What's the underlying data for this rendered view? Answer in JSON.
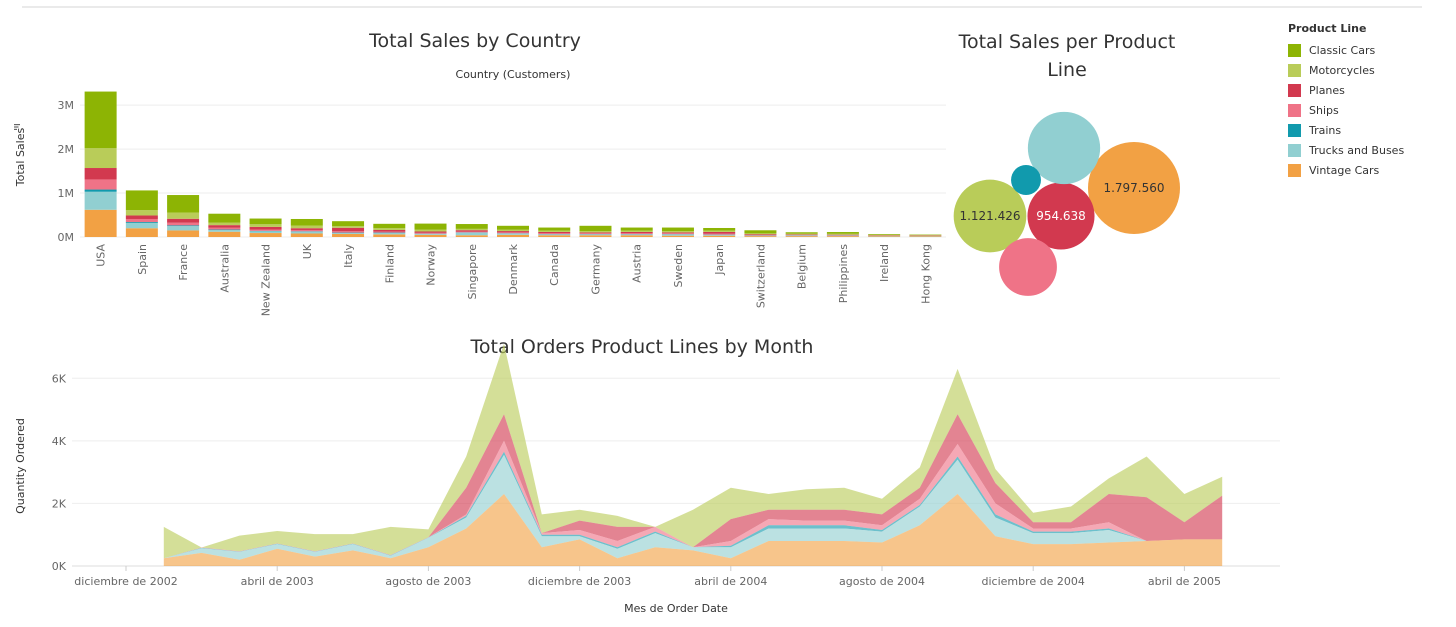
{
  "legend": {
    "title": "Product Line",
    "items": [
      {
        "label": "Classic Cars",
        "color": "#8db404"
      },
      {
        "label": "Motorcycles",
        "color": "#b9cc59"
      },
      {
        "label": "Planes",
        "color": "#d2394f"
      },
      {
        "label": "Ships",
        "color": "#ef7387"
      },
      {
        "label": "Trains",
        "color": "#119aad"
      },
      {
        "label": "Trucks and Buses",
        "color": "#91cfd1"
      },
      {
        "label": "Vintage Cars",
        "color": "#f2a144"
      }
    ]
  },
  "chart_data": [
    {
      "type": "bar",
      "stacked": true,
      "title": "Total Sales by Country",
      "subtitle": "Country (Customers)",
      "ylabel": "Total Sales",
      "ylim": [
        0,
        3300000
      ],
      "yticks": [
        0,
        1000000,
        2000000,
        3000000
      ],
      "ytick_labels": [
        "0M",
        "1M",
        "2M",
        "3M"
      ],
      "grid": true,
      "categories": [
        "USA",
        "Spain",
        "France",
        "Australia",
        "New Zealand",
        "UK",
        "Italy",
        "Finland",
        "Norway",
        "Singapore",
        "Denmark",
        "Canada",
        "Germany",
        "Austria",
        "Sweden",
        "Japan",
        "Switzerland",
        "Belgium",
        "Philippines",
        "Ireland",
        "Hong Kong"
      ],
      "series": [
        {
          "name": "Vintage Cars",
          "values": [
            620000,
            200000,
            150000,
            120000,
            90000,
            80000,
            70000,
            60000,
            50000,
            40000,
            50000,
            40000,
            40000,
            40000,
            30000,
            30000,
            20000,
            20000,
            20000,
            15000,
            15000
          ]
        },
        {
          "name": "Trucks and Buses",
          "values": [
            410000,
            120000,
            100000,
            40000,
            40000,
            40000,
            20000,
            30000,
            20000,
            60000,
            30000,
            20000,
            20000,
            20000,
            30000,
            20000,
            10000,
            15000,
            10000,
            5000,
            5000
          ]
        },
        {
          "name": "Trains",
          "values": [
            50000,
            20000,
            15000,
            10000,
            10000,
            10000,
            10000,
            10000,
            5000,
            5000,
            5000,
            5000,
            5000,
            5000,
            5000,
            5000,
            3000,
            3000,
            3000,
            2000,
            2000
          ]
        },
        {
          "name": "Ships",
          "values": [
            230000,
            70000,
            60000,
            40000,
            30000,
            30000,
            30000,
            20000,
            20000,
            20000,
            20000,
            20000,
            20000,
            20000,
            20000,
            20000,
            10000,
            10000,
            10000,
            5000,
            5000
          ]
        },
        {
          "name": "Planes",
          "values": [
            260000,
            80000,
            90000,
            60000,
            60000,
            40000,
            80000,
            40000,
            30000,
            30000,
            30000,
            30000,
            20000,
            30000,
            20000,
            40000,
            20000,
            10000,
            10000,
            10000,
            8000
          ]
        },
        {
          "name": "Motorcycles",
          "values": [
            450000,
            120000,
            140000,
            60000,
            60000,
            60000,
            40000,
            40000,
            40000,
            30000,
            30000,
            30000,
            30000,
            30000,
            30000,
            30000,
            20000,
            20000,
            20000,
            10000,
            10000
          ]
        },
        {
          "name": "Classic Cars",
          "values": [
            1290000,
            450000,
            400000,
            200000,
            130000,
            150000,
            110000,
            100000,
            140000,
            110000,
            90000,
            70000,
            120000,
            70000,
            80000,
            60000,
            70000,
            30000,
            40000,
            18000,
            10000
          ]
        }
      ]
    },
    {
      "type": "bubble",
      "title": "Total Sales per Product Line",
      "series": [
        {
          "name": "Vintage Cars",
          "value": 1797560,
          "label": "1.797.560"
        },
        {
          "name": "Motorcycles",
          "value": 1121426,
          "label": "1.121.426"
        },
        {
          "name": "Planes",
          "value": 954638,
          "label": "954.638"
        },
        {
          "name": "Trucks and Buses",
          "value": 1110000
        },
        {
          "name": "Ships",
          "value": 710000
        },
        {
          "name": "Trains",
          "value": 190000
        }
      ]
    },
    {
      "type": "area",
      "stacked": true,
      "title": "Total Orders Product Lines by Month",
      "xlabel": "Mes de Order Date",
      "ylabel": "Quantity Ordered",
      "ylim": [
        0,
        6200
      ],
      "yticks": [
        0,
        2000,
        4000,
        6000
      ],
      "ytick_labels": [
        "0K",
        "2K",
        "4K",
        "6K"
      ],
      "grid": true,
      "xtick_labels": [
        {
          "label": "diciembre de 2002",
          "month": "2002-12"
        },
        {
          "label": "abril de 2003",
          "month": "2003-04"
        },
        {
          "label": "agosto de 2003",
          "month": "2003-08"
        },
        {
          "label": "diciembre de 2003",
          "month": "2003-12"
        },
        {
          "label": "abril de 2004",
          "month": "2004-04"
        },
        {
          "label": "agosto de 2004",
          "month": "2004-08"
        },
        {
          "label": "diciembre de 2004",
          "month": "2004-12"
        },
        {
          "label": "abril de 2005",
          "month": "2005-04"
        }
      ],
      "x": [
        "2003-01",
        "2003-02",
        "2003-03",
        "2003-04",
        "2003-05",
        "2003-06",
        "2003-07",
        "2003-08",
        "2003-09",
        "2003-10",
        "2003-11",
        "2003-12",
        "2004-01",
        "2004-02",
        "2004-03",
        "2004-04",
        "2004-05",
        "2004-06",
        "2004-07",
        "2004-08",
        "2004-09",
        "2004-10",
        "2004-11",
        "2004-12",
        "2005-01",
        "2005-02",
        "2005-03",
        "2005-04",
        "2005-05"
      ],
      "series": [
        {
          "name": "Vintage Cars",
          "values": [
            250,
            420,
            200,
            550,
            300,
            500,
            250,
            600,
            1200,
            2300,
            600,
            850,
            250,
            600,
            500,
            250,
            800,
            800,
            800,
            750,
            1300,
            2300,
            950,
            700,
            700,
            750,
            800,
            850,
            850
          ]
        },
        {
          "name": "Trucks and Buses",
          "values": [
            0,
            150,
            250,
            150,
            150,
            200,
            80,
            300,
            350,
            1250,
            350,
            100,
            300,
            450,
            100,
            350,
            400,
            400,
            400,
            350,
            600,
            1100,
            600,
            350,
            350,
            400,
            0,
            0,
            0
          ]
        },
        {
          "name": "Trains",
          "values": [
            0,
            10,
            10,
            10,
            10,
            10,
            10,
            10,
            50,
            100,
            50,
            50,
            50,
            50,
            0,
            50,
            100,
            100,
            100,
            50,
            50,
            100,
            100,
            50,
            50,
            50,
            0,
            0,
            0
          ]
        },
        {
          "name": "Ships",
          "values": [
            0,
            10,
            10,
            10,
            10,
            10,
            10,
            10,
            50,
            350,
            50,
            150,
            200,
            150,
            0,
            150,
            200,
            150,
            150,
            150,
            200,
            400,
            350,
            100,
            100,
            200,
            0,
            0,
            0
          ]
        },
        {
          "name": "Planes",
          "values": [
            0,
            0,
            0,
            0,
            0,
            0,
            0,
            0,
            850,
            850,
            0,
            300,
            450,
            0,
            0,
            700,
            300,
            350,
            350,
            350,
            350,
            950,
            650,
            200,
            200,
            900,
            1400,
            550,
            1400
          ]
        },
        {
          "name": "Motorcycles",
          "values": [
            1000,
            0,
            500,
            400,
            550,
            300,
            900,
            250,
            1000,
            2250,
            600,
            350,
            350,
            0,
            1200,
            1000,
            500,
            650,
            700,
            500,
            650,
            1450,
            450,
            300,
            500,
            500,
            1300,
            900,
            600
          ]
        },
        {
          "name": "Classic Cars",
          "values": [
            0,
            0,
            0,
            0,
            0,
            0,
            0,
            0,
            0,
            0,
            0,
            0,
            0,
            0,
            0,
            0,
            0,
            0,
            0,
            0,
            0,
            0,
            0,
            0,
            0,
            0,
            0,
            0,
            0
          ]
        }
      ]
    }
  ]
}
